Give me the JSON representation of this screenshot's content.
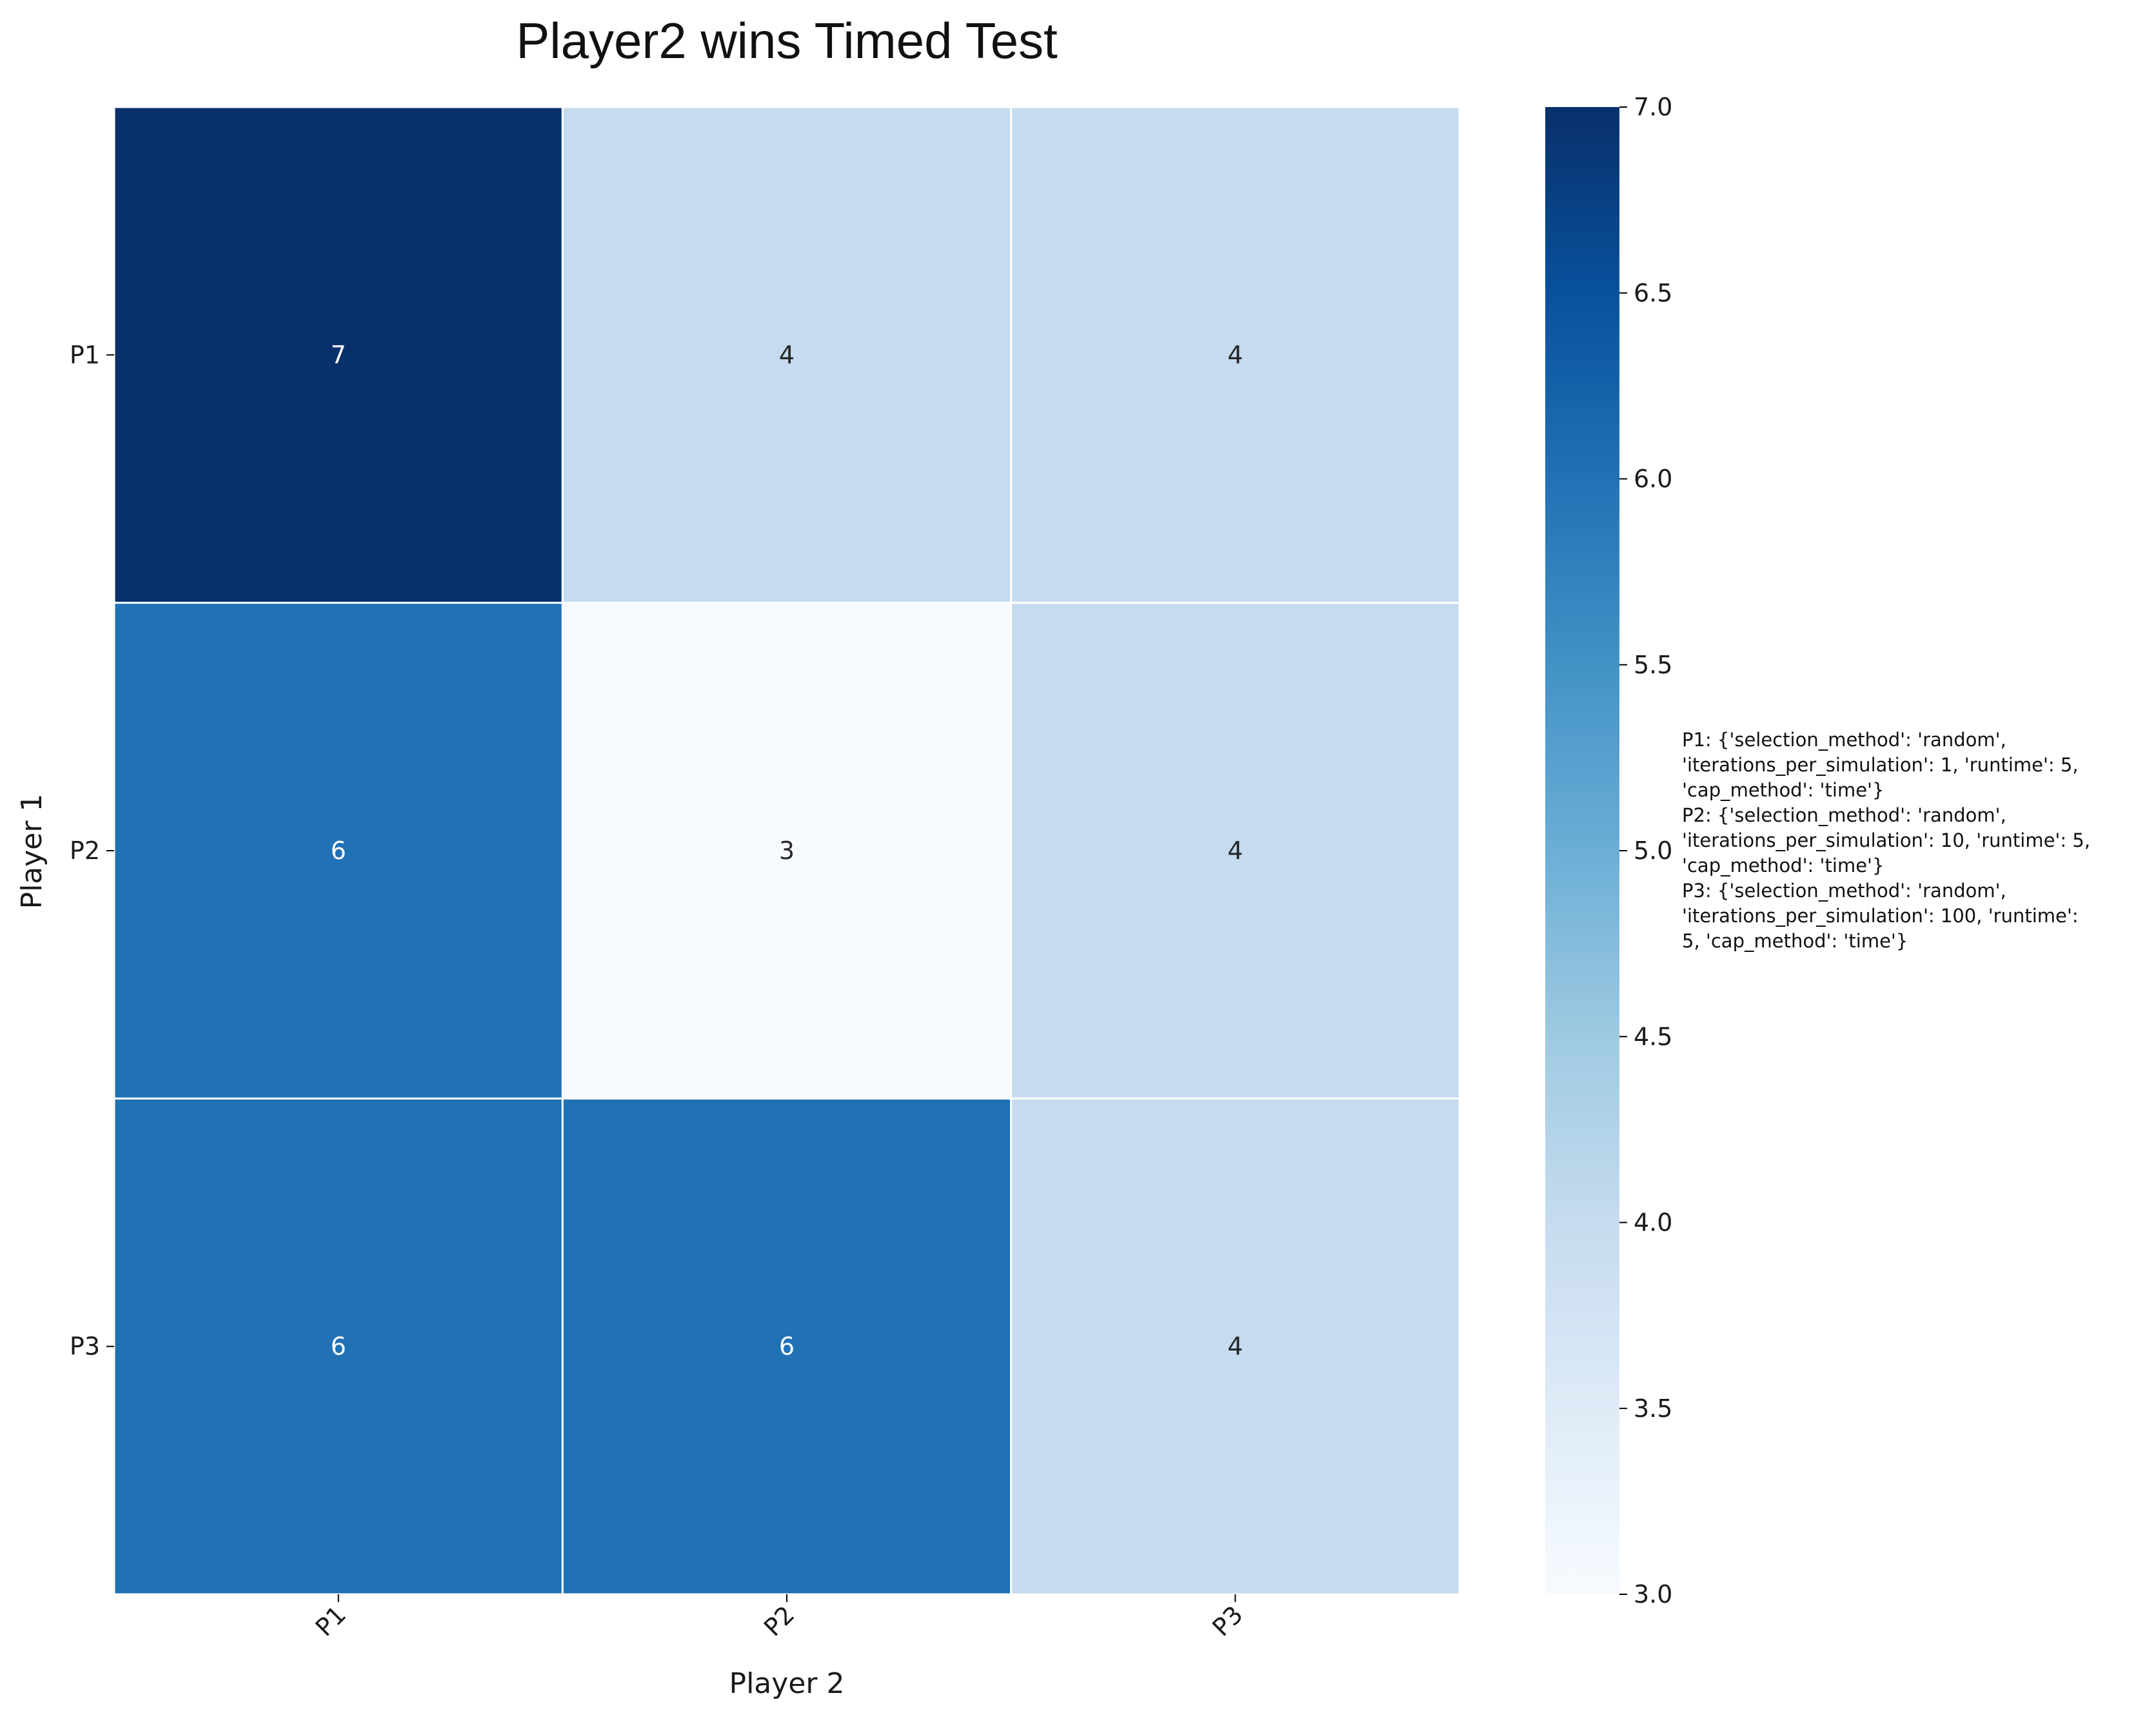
{
  "chart_data": {
    "type": "heatmap",
    "title": "Player2 wins Timed Test",
    "xlabel": "Player 2",
    "ylabel": "Player 1",
    "x_categories": [
      "P1",
      "P2",
      "P3"
    ],
    "y_categories": [
      "P1",
      "P2",
      "P3"
    ],
    "values": [
      [
        7,
        4,
        4
      ],
      [
        6,
        3,
        4
      ],
      [
        6,
        6,
        4
      ]
    ],
    "colorbar": {
      "min": 3.0,
      "max": 7.0,
      "ticks": [
        "3.0",
        "3.5",
        "4.0",
        "4.5",
        "5.0",
        "5.5",
        "6.0",
        "6.5",
        "7.0"
      ],
      "colormap": "Blues",
      "position": "right"
    },
    "annotation_lines": [
      "P1: {'selection_method': 'random',",
      "'iterations_per_simulation': 1, 'runtime': 5,",
      "'cap_method': 'time'}",
      "P2: {'selection_method': 'random',",
      "'iterations_per_simulation': 10, 'runtime': 5,",
      "'cap_method': 'time'}",
      "P3: {'selection_method': 'random',",
      "'iterations_per_simulation': 100, 'runtime':",
      "5, 'cap_method': 'time'}"
    ],
    "grid": false
  }
}
